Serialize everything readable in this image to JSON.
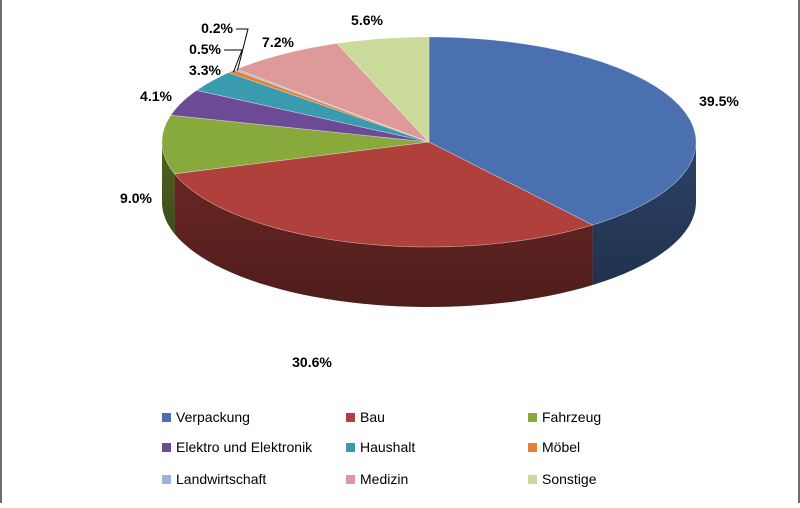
{
  "chart_data": {
    "type": "pie",
    "title": "",
    "legend": "bottom",
    "categories": [
      "Verpackung",
      "Bau",
      "Fahrzeug",
      "Elektro und Elektronik",
      "Haushalt",
      "Möbel",
      "Landwirtschaft",
      "Medizin",
      "Sonstige"
    ],
    "values": [
      39.5,
      30.6,
      9.0,
      4.1,
      3.3,
      0.5,
      0.2,
      7.2,
      5.6
    ],
    "labels": [
      "39.5%",
      "30.6%",
      "9.0%",
      "4.1%",
      "3.3%",
      "0.5%",
      "0.2%",
      "7.2%",
      "5.6%"
    ],
    "colors": [
      "#4a70b0",
      "#b0403c",
      "#88aa3c",
      "#6c4a96",
      "#3a9aae",
      "#e28232",
      "#99b3dd",
      "#dd9a98",
      "#c9da9a"
    ]
  }
}
